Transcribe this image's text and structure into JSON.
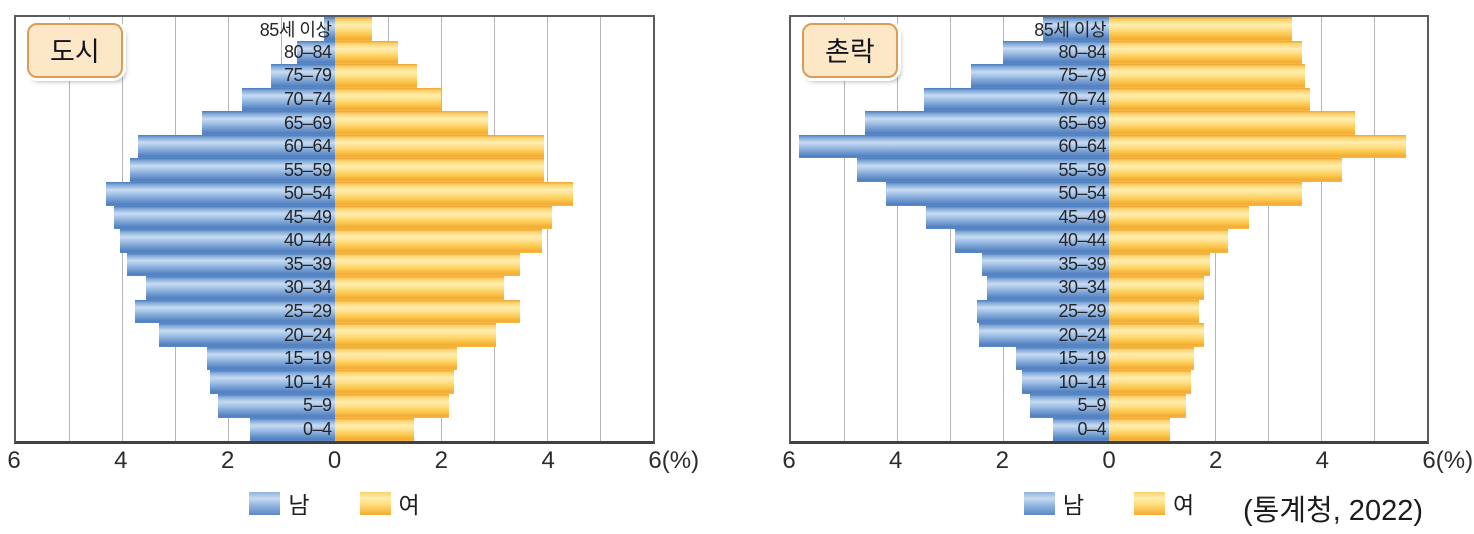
{
  "source": {
    "label": "(통계청, 2022)"
  },
  "colors": {
    "male": "#6f9cd2",
    "female": "#fdc94e",
    "gridline": "#b5b5b5",
    "plot_border": "#595b5f",
    "badge_fill": "#fce7c6",
    "badge_border": "#dd9c55"
  },
  "chart_data": [
    {
      "type": "bar",
      "variant": "population-pyramid",
      "title": "도시",
      "unit": "%",
      "xlim": [
        -6,
        6
      ],
      "grid": true,
      "legend_position": "bottom",
      "ticks": [
        "6",
        "4",
        "2",
        "0",
        "2",
        "4",
        "6(%)"
      ],
      "categories_order": "top-to-bottom",
      "categories": [
        "85세 이상",
        "80–84",
        "75–79",
        "70–74",
        "65–69",
        "60–64",
        "55–59",
        "50–54",
        "45–49",
        "40–44",
        "35–39",
        "30–34",
        "25–29",
        "20–24",
        "15–19",
        "10–14",
        "5–9",
        "0–4"
      ],
      "series": [
        {
          "name": "남",
          "side": "left",
          "values": [
            0.2,
            0.7,
            1.2,
            1.75,
            2.5,
            3.7,
            3.85,
            4.3,
            4.15,
            4.05,
            3.9,
            3.55,
            3.75,
            3.3,
            2.4,
            2.35,
            2.2,
            1.6
          ]
        },
        {
          "name": "여",
          "side": "right",
          "values": [
            0.7,
            1.2,
            1.55,
            2.0,
            2.9,
            3.95,
            3.95,
            4.5,
            4.1,
            3.9,
            3.5,
            3.2,
            3.5,
            3.05,
            2.3,
            2.25,
            2.15,
            1.5
          ]
        }
      ]
    },
    {
      "type": "bar",
      "variant": "population-pyramid",
      "title": "촌락",
      "unit": "%",
      "xlim": [
        -6,
        6
      ],
      "grid": true,
      "legend_position": "bottom",
      "ticks": [
        "6",
        "4",
        "2",
        "0",
        "2",
        "4",
        "6(%)"
      ],
      "categories_order": "top-to-bottom",
      "categories": [
        "85세 이상",
        "80–84",
        "75–79",
        "70–74",
        "65–69",
        "60–64",
        "55–59",
        "50–54",
        "45–49",
        "40–44",
        "35–39",
        "30–34",
        "25–29",
        "20–24",
        "15–19",
        "10–14",
        "5–9",
        "0–4"
      ],
      "series": [
        {
          "name": "남",
          "side": "left",
          "values": [
            1.25,
            2.0,
            2.6,
            3.5,
            4.6,
            5.85,
            4.75,
            4.2,
            3.45,
            2.9,
            2.4,
            2.3,
            2.5,
            2.45,
            1.75,
            1.65,
            1.5,
            1.05
          ]
        },
        {
          "name": "여",
          "side": "right",
          "values": [
            3.45,
            3.65,
            3.7,
            3.8,
            4.65,
            5.6,
            4.4,
            3.65,
            2.65,
            2.25,
            1.9,
            1.8,
            1.7,
            1.8,
            1.6,
            1.55,
            1.45,
            1.15
          ]
        }
      ]
    }
  ]
}
